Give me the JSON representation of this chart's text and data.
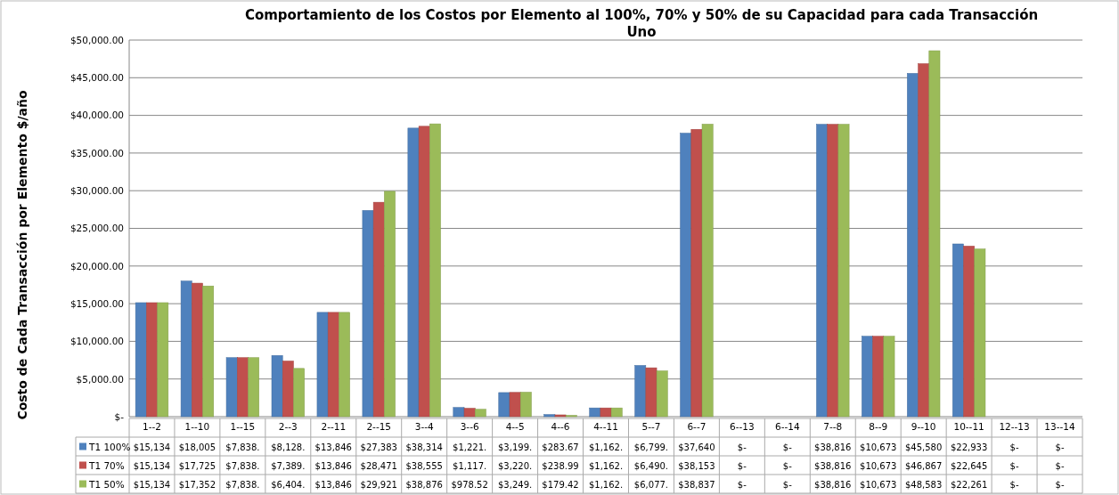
{
  "chart_data": {
    "type": "bar",
    "title": "Comportamiento de los Costos por Elemento al 100%, 70% y 50% de su Capacidad para cada Transacción Uno",
    "ylabel": "Costo de Cada Transacción por Elemento $/año",
    "categories": [
      "1--2",
      "1--10",
      "1--15",
      "2--3",
      "2--11",
      "2--15",
      "3--4",
      "3--6",
      "4--5",
      "4--6",
      "4--11",
      "5--7",
      "6--7",
      "6--13",
      "6--14",
      "7--8",
      "8--9",
      "9--10",
      "10--11",
      "12--13",
      "13--14"
    ],
    "series": [
      {
        "name": "T1 100%",
        "color": "#4f81bd",
        "values": [
          15134,
          18005,
          7838,
          8128,
          13846,
          27383,
          38314,
          1221,
          3199,
          283.67,
          1162,
          6799,
          37640,
          0,
          0,
          38816,
          10673,
          45580,
          22933,
          0,
          0
        ],
        "value_labels": [
          "$15,134",
          "$18,005",
          "$7,838.",
          "$8,128.",
          "$13,846",
          "$27,383",
          "$38,314",
          "$1,221.",
          "$3,199.",
          "$283.67",
          "$1,162.",
          "$6,799.",
          "$37,640",
          "$-",
          "$-",
          "$38,816",
          "$10,673",
          "$45,580",
          "$22,933",
          "$-",
          "$-"
        ]
      },
      {
        "name": "T1 70%",
        "color": "#c0504d",
        "values": [
          15134,
          17725,
          7838,
          7389,
          13846,
          28471,
          38555,
          1117,
          3220,
          238.99,
          1162,
          6490,
          38153,
          0,
          0,
          38816,
          10673,
          46867,
          22645,
          0,
          0
        ],
        "value_labels": [
          "$15,134",
          "$17,725",
          "$7,838.",
          "$7,389.",
          "$13,846",
          "$28,471",
          "$38,555",
          "$1,117.",
          "$3,220.",
          "$238.99",
          "$1,162.",
          "$6,490.",
          "$38,153",
          "$-",
          "$-",
          "$38,816",
          "$10,673",
          "$46,867",
          "$22,645",
          "$-",
          "$-"
        ]
      },
      {
        "name": "T1 50%",
        "color": "#9bbb59",
        "values": [
          15134,
          17352,
          7838,
          6404,
          13846,
          29921,
          38876,
          978.52,
          3249,
          179.42,
          1162,
          6077,
          38837,
          0,
          0,
          38816,
          10673,
          48583,
          22261,
          0,
          0
        ],
        "value_labels": [
          "$15,134",
          "$17,352",
          "$7,838.",
          "$6,404.",
          "$13,846",
          "$29,921",
          "$38,876",
          "$978.52",
          "$3,249.",
          "$179.42",
          "$1,162.",
          "$6,077.",
          "$38,837",
          "$-",
          "$-",
          "$38,816",
          "$10,673",
          "$48,583",
          "$22,261",
          "$-",
          "$-"
        ]
      }
    ],
    "ylim": [
      0,
      50000
    ],
    "yticks": [
      {
        "value": 0,
        "label": "$-"
      },
      {
        "value": 5000,
        "label": "$5,000.00"
      },
      {
        "value": 10000,
        "label": "$10,000.00"
      },
      {
        "value": 15000,
        "label": "$15,000.00"
      },
      {
        "value": 20000,
        "label": "$20,000.00"
      },
      {
        "value": 25000,
        "label": "$25,000.00"
      },
      {
        "value": 30000,
        "label": "$30,000.00"
      },
      {
        "value": 35000,
        "label": "$35,000.00"
      },
      {
        "value": 40000,
        "label": "$40,000.00"
      },
      {
        "value": 45000,
        "label": "$45,000.00"
      },
      {
        "value": 50000,
        "label": "$50,000.00"
      }
    ],
    "grid": "y",
    "legend": "bottom"
  }
}
